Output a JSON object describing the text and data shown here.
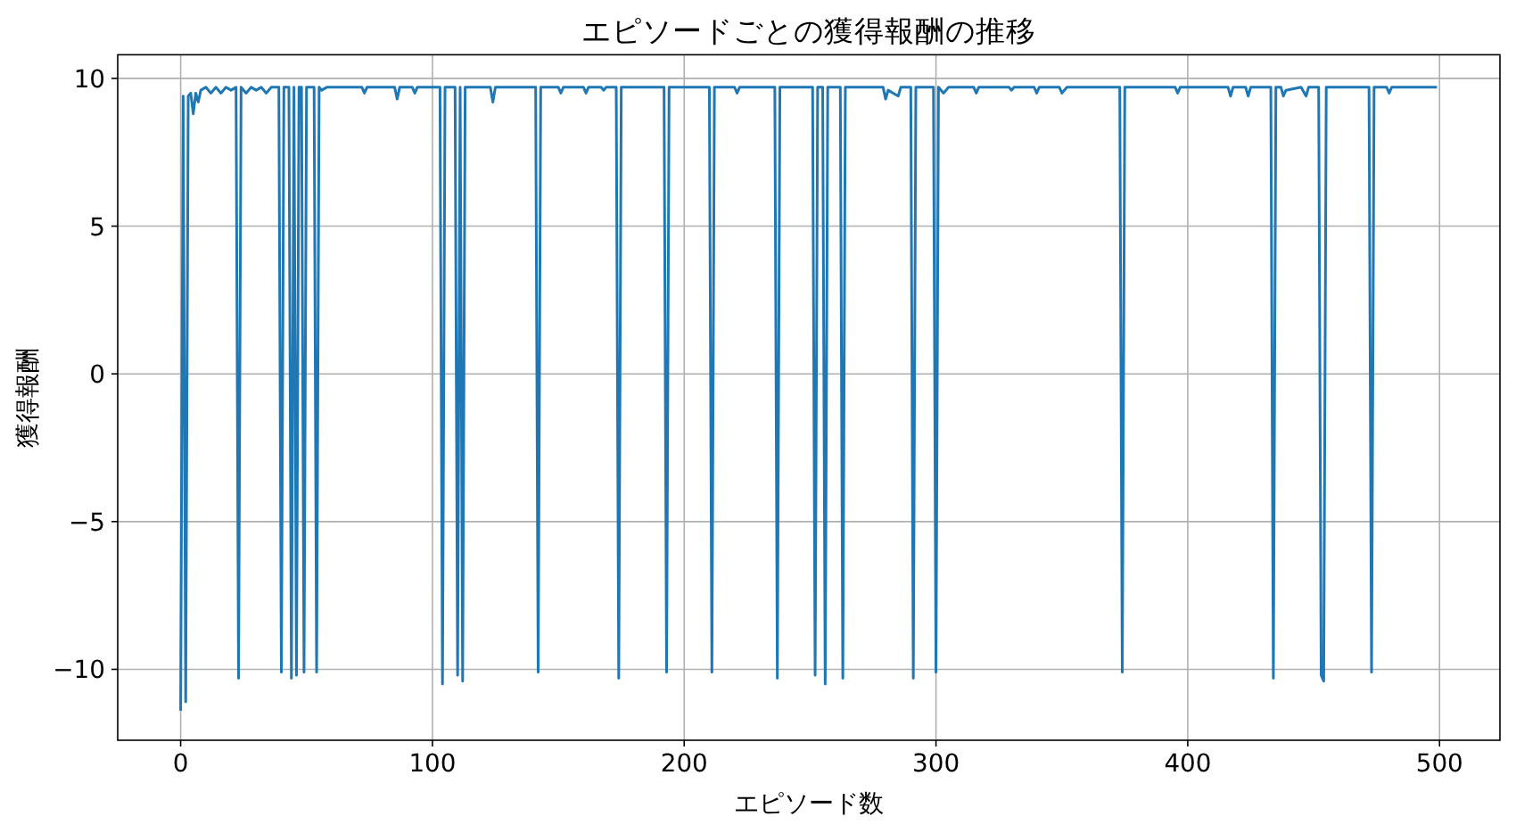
{
  "chart_data": {
    "type": "line",
    "title": "エピソードごとの獲得報酬の推移",
    "xlabel": "エピソード数",
    "ylabel": "獲得報酬",
    "x": [
      0,
      1,
      2,
      3,
      4,
      5,
      6,
      7,
      8,
      10,
      12,
      14,
      16,
      18,
      20,
      22,
      23,
      24,
      26,
      28,
      30,
      32,
      34,
      36,
      39,
      40,
      41,
      43,
      44,
      45,
      46,
      47,
      48,
      49,
      50,
      53,
      54,
      55,
      56,
      58,
      72,
      73,
      74,
      85,
      86,
      87,
      92,
      93,
      94,
      103,
      104,
      105,
      109,
      110,
      111,
      112,
      113,
      123,
      124,
      125,
      141,
      142,
      143,
      150,
      151,
      152,
      160,
      161,
      162,
      167,
      168,
      169,
      173,
      174,
      175,
      192,
      193,
      194,
      210,
      211,
      212,
      220,
      221,
      222,
      236,
      237,
      238,
      251,
      252,
      253,
      255,
      256,
      257,
      262,
      263,
      264,
      279,
      280,
      281,
      283,
      285,
      286,
      290,
      291,
      292,
      299,
      300,
      301,
      303,
      305,
      315,
      316,
      317,
      329,
      330,
      331,
      339,
      340,
      341,
      349,
      350,
      352,
      373,
      374,
      375,
      395,
      396,
      397,
      416,
      417,
      418,
      423,
      424,
      425,
      433,
      434,
      435,
      437,
      438,
      439,
      445,
      447,
      448,
      452,
      453,
      454,
      455,
      472,
      473,
      474,
      479,
      480,
      481,
      499
    ],
    "series": [
      {
        "color": "#1f77b4",
        "values": [
          -11.4,
          9.4,
          -11.1,
          9.4,
          9.5,
          8.8,
          9.5,
          9.2,
          9.6,
          9.7,
          9.5,
          9.7,
          9.5,
          9.7,
          9.6,
          9.7,
          -10.3,
          9.7,
          9.5,
          9.7,
          9.6,
          9.7,
          9.5,
          9.7,
          9.7,
          -10.1,
          9.7,
          9.7,
          -10.3,
          9.7,
          -10.2,
          9.7,
          9.7,
          -10.1,
          9.7,
          9.7,
          -10.1,
          9.7,
          9.6,
          9.7,
          9.7,
          9.5,
          9.7,
          9.7,
          9.3,
          9.7,
          9.7,
          9.5,
          9.7,
          9.7,
          -10.5,
          9.7,
          9.7,
          -10.2,
          9.7,
          -10.4,
          9.7,
          9.7,
          9.2,
          9.7,
          9.7,
          -10.1,
          9.7,
          9.7,
          9.5,
          9.7,
          9.7,
          9.5,
          9.7,
          9.7,
          9.6,
          9.7,
          9.7,
          -10.3,
          9.7,
          9.7,
          -10.1,
          9.7,
          9.7,
          -10.1,
          9.7,
          9.7,
          9.5,
          9.7,
          9.7,
          -10.3,
          9.7,
          9.7,
          -10.2,
          9.7,
          9.7,
          -10.5,
          9.7,
          9.7,
          -10.3,
          9.7,
          9.7,
          9.3,
          9.6,
          9.5,
          9.4,
          9.7,
          9.7,
          -10.3,
          9.7,
          9.7,
          -10.1,
          9.7,
          9.5,
          9.7,
          9.7,
          9.5,
          9.7,
          9.7,
          9.6,
          9.7,
          9.7,
          9.5,
          9.7,
          9.7,
          9.5,
          9.7,
          9.7,
          -10.1,
          9.7,
          9.7,
          9.5,
          9.7,
          9.7,
          9.4,
          9.7,
          9.7,
          9.4,
          9.7,
          9.7,
          -10.3,
          9.7,
          9.7,
          9.4,
          9.6,
          9.7,
          9.4,
          9.7,
          9.7,
          -10.2,
          -10.4,
          9.7,
          9.7,
          -10.1,
          9.7,
          9.7,
          9.5,
          9.7,
          9.7
        ]
      }
    ],
    "xlim": [
      -25,
      524
    ],
    "ylim": [
      -12.4,
      10.8
    ],
    "xticks": [
      0,
      100,
      200,
      300,
      400,
      500
    ],
    "yticks": [
      {
        "value": -10,
        "label": "−10"
      },
      {
        "value": -5,
        "label": "−5"
      },
      0,
      5,
      10
    ],
    "grid": true,
    "line_style": "solid"
  }
}
